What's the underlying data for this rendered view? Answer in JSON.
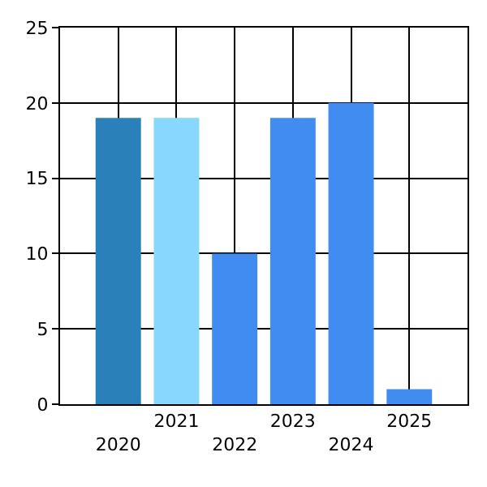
{
  "chart_data": {
    "type": "bar",
    "categories": [
      "2020",
      "2021",
      "2022",
      "2023",
      "2024",
      "2025"
    ],
    "values": [
      19,
      19,
      10,
      19,
      20,
      1
    ],
    "colors": [
      "#2a80b9",
      "#87d7ff",
      "#418cf0",
      "#418cf0",
      "#418cf0",
      "#418cf0"
    ],
    "ylim": [
      0,
      25
    ],
    "yticks": [
      0,
      5,
      10,
      15,
      20,
      25
    ],
    "grid": true
  }
}
